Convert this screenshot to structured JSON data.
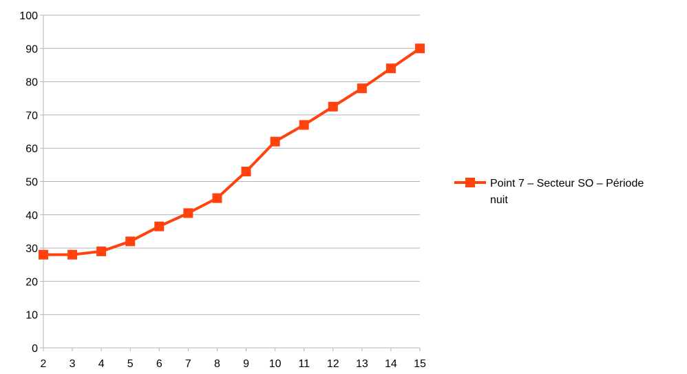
{
  "chart_data": {
    "type": "line",
    "title": "",
    "xlabel": "",
    "ylabel": "",
    "x": [
      2,
      3,
      4,
      5,
      6,
      7,
      8,
      9,
      10,
      11,
      12,
      13,
      14,
      15
    ],
    "xlim": [
      2,
      15
    ],
    "ylim": [
      0,
      100
    ],
    "y_ticks": [
      0,
      10,
      20,
      30,
      40,
      50,
      60,
      70,
      80,
      90,
      100
    ],
    "grid": "horizontal",
    "legend_position": "right",
    "series": [
      {
        "name": "Point 7 – Secteur SO – Période nuit",
        "legend_lines": [
          "Point 7 – Secteur SO – Période",
          "nuit"
        ],
        "values": [
          28,
          28,
          29,
          32,
          36.5,
          40.5,
          45,
          53,
          62,
          67,
          72.5,
          78,
          84,
          90
        ],
        "color": "#ff420e",
        "marker": "square"
      }
    ]
  }
}
